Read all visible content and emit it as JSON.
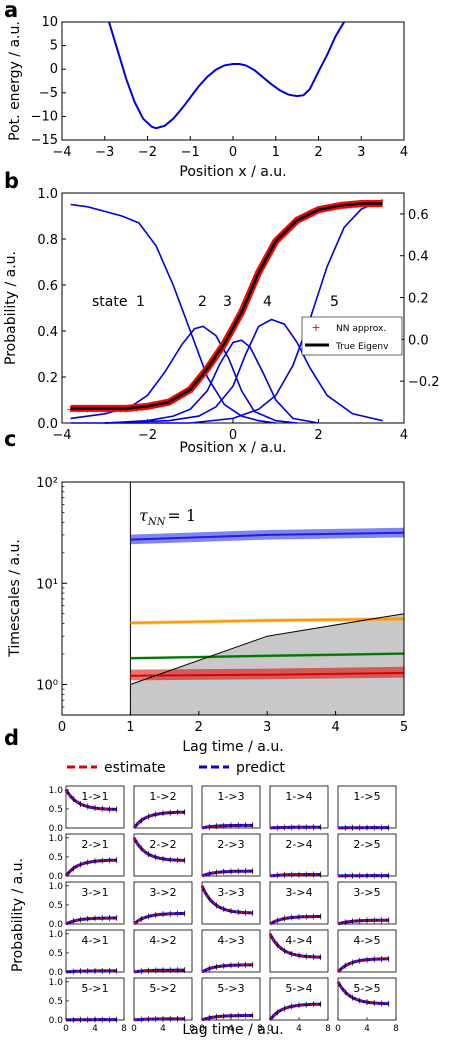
{
  "figure": {
    "panel_letters": [
      "a",
      "b",
      "c",
      "d"
    ]
  },
  "chart_data": [
    {
      "panel": "a",
      "type": "line",
      "xlabel": "Position x / a.u.",
      "ylabel": "Pot. energy / a.u.",
      "xlim": [
        -4,
        4
      ],
      "ylim": [
        -15,
        10
      ],
      "xticks": [
        -4,
        -3,
        -2,
        -1,
        0,
        1,
        2,
        3,
        4
      ],
      "yticks": [
        -15,
        -10,
        -5,
        0,
        5,
        10
      ],
      "color": "#0000dd",
      "series": [
        {
          "x": [
            -2.9,
            -2.7,
            -2.5,
            -2.3,
            -2.1,
            -1.9,
            -1.8,
            -1.6,
            -1.4,
            -1.2,
            -1.0,
            -0.8,
            -0.6,
            -0.4,
            -0.2,
            0.0,
            0.15,
            0.3,
            0.5,
            0.7,
            0.9,
            1.1,
            1.3,
            1.5,
            1.65,
            1.8,
            2.0,
            2.2,
            2.4,
            2.6
          ],
          "y": [
            10.0,
            4.0,
            -2.0,
            -7.0,
            -10.5,
            -12.2,
            -12.5,
            -12.0,
            -10.5,
            -8.4,
            -6.0,
            -3.6,
            -1.6,
            -0.1,
            0.8,
            1.1,
            1.1,
            0.8,
            -0.2,
            -1.7,
            -3.2,
            -4.5,
            -5.4,
            -5.7,
            -5.5,
            -4.2,
            -0.5,
            3.0,
            7.0,
            10.0
          ]
        }
      ]
    },
    {
      "panel": "b",
      "type": "line",
      "xlabel": "Position x / a.u.",
      "ylabel": "Probability / a.u.",
      "xlim": [
        -4,
        4
      ],
      "ylim": [
        0,
        1.0
      ],
      "y2lim": [
        -0.4,
        0.7
      ],
      "xticks": [
        -4,
        -2,
        0,
        2,
        4
      ],
      "yticks": [
        0.0,
        0.2,
        0.4,
        0.6,
        0.8,
        1.0
      ],
      "y2ticks": [
        -0.2,
        0.0,
        0.2,
        0.4,
        0.6
      ],
      "state_label": "state",
      "state_numbers": [
        "1",
        "2",
        "3",
        "4",
        "5"
      ],
      "legend": {
        "position": "right",
        "entries": [
          "NN approx.",
          "True Eigenv"
        ]
      },
      "colors": {
        "states": "#0000dd",
        "nn": "#ff0000",
        "eigen": "#000000"
      },
      "state_curves": [
        {
          "name": "1",
          "x": [
            -3.8,
            -3.4,
            -3.0,
            -2.6,
            -2.2,
            -1.8,
            -1.4,
            -1.0,
            -0.6,
            -0.2,
            0.2,
            0.6,
            1.0
          ],
          "y": [
            0.95,
            0.94,
            0.92,
            0.9,
            0.87,
            0.77,
            0.6,
            0.4,
            0.2,
            0.08,
            0.03,
            0.01,
            0.0
          ]
        },
        {
          "name": "2",
          "x": [
            -3.8,
            -3.0,
            -2.4,
            -2.0,
            -1.6,
            -1.2,
            -0.9,
            -0.7,
            -0.4,
            -0.1,
            0.2,
            0.5,
            1.0,
            1.5
          ],
          "y": [
            0.02,
            0.04,
            0.07,
            0.12,
            0.22,
            0.34,
            0.41,
            0.42,
            0.38,
            0.28,
            0.14,
            0.05,
            0.01,
            0.0
          ]
        },
        {
          "name": "3",
          "x": [
            -3.0,
            -2.0,
            -1.4,
            -1.0,
            -0.6,
            -0.3,
            0.0,
            0.2,
            0.4,
            0.7,
            1.0,
            1.4,
            2.0
          ],
          "y": [
            0.0,
            0.01,
            0.03,
            0.06,
            0.14,
            0.26,
            0.35,
            0.36,
            0.33,
            0.22,
            0.1,
            0.02,
            0.0
          ]
        },
        {
          "name": "4",
          "x": [
            -3.0,
            -1.5,
            -0.8,
            -0.4,
            0.0,
            0.3,
            0.6,
            0.9,
            1.2,
            1.5,
            1.8,
            2.2,
            2.8,
            3.5
          ],
          "y": [
            0.0,
            0.01,
            0.03,
            0.07,
            0.16,
            0.3,
            0.42,
            0.45,
            0.43,
            0.35,
            0.24,
            0.12,
            0.04,
            0.01
          ]
        },
        {
          "name": "5",
          "x": [
            -3.8,
            -1.0,
            0.0,
            0.6,
            1.0,
            1.4,
            1.8,
            2.2,
            2.6,
            3.0,
            3.5
          ],
          "y": [
            0.0,
            0.0,
            0.02,
            0.06,
            0.12,
            0.25,
            0.45,
            0.68,
            0.85,
            0.93,
            0.97
          ]
        }
      ],
      "eigen_curve": {
        "x": [
          -3.8,
          -3.0,
          -2.5,
          -2.0,
          -1.5,
          -1.0,
          -0.6,
          -0.2,
          0.2,
          0.6,
          1.0,
          1.5,
          2.0,
          2.5,
          3.0,
          3.5
        ],
        "y": [
          -0.33,
          -0.33,
          -0.33,
          -0.32,
          -0.3,
          -0.24,
          -0.14,
          -0.02,
          0.13,
          0.32,
          0.47,
          0.57,
          0.62,
          0.64,
          0.65,
          0.65
        ]
      }
    },
    {
      "panel": "c",
      "type": "line",
      "xlabel": "Lag time / a.u.",
      "ylabel": "Timescales / a.u.",
      "xlim": [
        0,
        5
      ],
      "ylim": [
        0.5,
        100
      ],
      "yscale": "log",
      "xticks": [
        0,
        1,
        2,
        3,
        4,
        5
      ],
      "ytick_labels": [
        "10⁰",
        "10¹",
        "10²"
      ],
      "annotation": "τ",
      "annotation_sub": "NN",
      "annotation_suffix": "= 1",
      "series": [
        {
          "x": [
            1,
            3,
            5
          ],
          "y": [
            27.0,
            30.0,
            31.5
          ],
          "color": "#1f1fe0",
          "band": [
            0.12,
            0.1
          ]
        },
        {
          "x": [
            1,
            3,
            5
          ],
          "y": [
            4.05,
            4.3,
            4.45
          ],
          "color": "#ff9900",
          "band": [
            0.04,
            0.04
          ]
        },
        {
          "x": [
            1,
            3,
            5
          ],
          "y": [
            1.82,
            1.92,
            2.02
          ],
          "color": "#007700",
          "band": [
            0.03,
            0.03
          ]
        },
        {
          "x": [
            1,
            3,
            5
          ],
          "y": [
            1.22,
            1.25,
            1.3
          ],
          "color": "#dd0000",
          "band": [
            0.15,
            0.1
          ]
        }
      ],
      "cutoff_line": {
        "x": [
          1,
          3,
          5
        ],
        "y": [
          1.0,
          3.0,
          5.0
        ]
      },
      "shaded_region_color": "#c8c8c8"
    },
    {
      "panel": "d",
      "type": "line",
      "xlabel": "Lag time / a.u.",
      "ylabel": "Probability / a.u.",
      "legend": {
        "position": "top",
        "entries": [
          "estimate",
          "predict"
        ]
      },
      "colors": {
        "estimate": "#dd0000",
        "predict": "#0000dd"
      },
      "xlim": [
        0,
        8
      ],
      "ylim": [
        0,
        1.1
      ],
      "xticks": [
        0,
        4,
        8
      ],
      "yticks": [
        0.0,
        0.5,
        1.0
      ],
      "grid": {
        "labels": [
          [
            "1->1",
            "1->2",
            "1->3",
            "1->4",
            "1->5"
          ],
          [
            "2->1",
            "2->2",
            "2->3",
            "2->4",
            "2->5"
          ],
          [
            "3->1",
            "3->2",
            "3->3",
            "3->4",
            "3->5"
          ],
          [
            "4->1",
            "4->2",
            "4->3",
            "4->4",
            "4->5"
          ],
          [
            "5->1",
            "5->2",
            "5->3",
            "5->4",
            "5->5"
          ]
        ],
        "start": [
          [
            1.0,
            0.0,
            0.0,
            0.0,
            0.0
          ],
          [
            0.0,
            1.0,
            0.0,
            0.0,
            0.0
          ],
          [
            0.0,
            0.0,
            1.0,
            0.0,
            0.0
          ],
          [
            0.0,
            0.0,
            0.0,
            1.0,
            0.0
          ],
          [
            0.0,
            0.0,
            0.0,
            0.0,
            1.0
          ]
        ],
        "end": [
          [
            0.48,
            0.42,
            0.07,
            0.02,
            0.01
          ],
          [
            0.42,
            0.4,
            0.13,
            0.04,
            0.01
          ],
          [
            0.16,
            0.28,
            0.28,
            0.2,
            0.1
          ],
          [
            0.03,
            0.05,
            0.19,
            0.38,
            0.35
          ],
          [
            0.01,
            0.03,
            0.12,
            0.42,
            0.42
          ]
        ]
      }
    }
  ]
}
